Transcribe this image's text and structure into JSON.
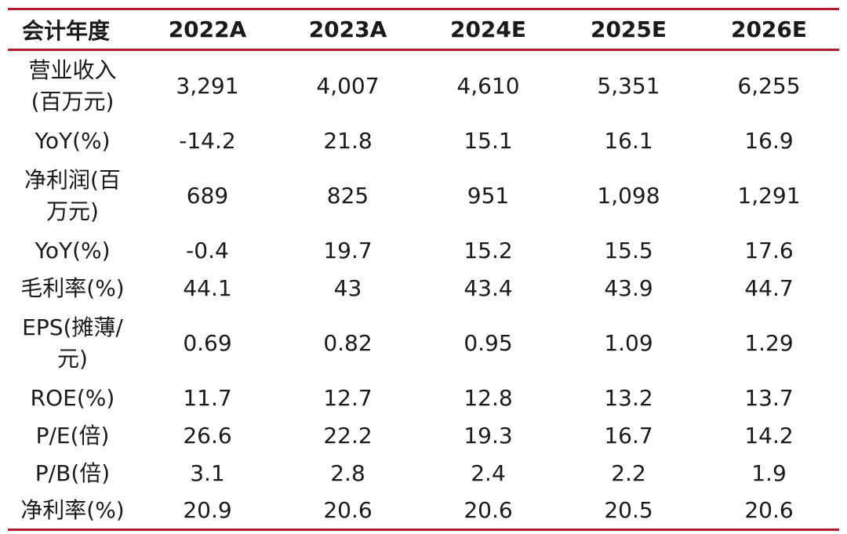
{
  "table": {
    "header": [
      "会计年度",
      "2022A",
      "2023A",
      "2024E",
      "2025E",
      "2026E"
    ],
    "rows": [
      {
        "label": "营业收入\n(百万元)",
        "values": [
          "3,291",
          "4,007",
          "4,610",
          "5,351",
          "6,255"
        ]
      },
      {
        "label": "YoY(%)",
        "values": [
          "-14.2",
          "21.8",
          "15.1",
          "16.1",
          "16.9"
        ]
      },
      {
        "label": "净利润(百\n万元)",
        "values": [
          "689",
          "825",
          "951",
          "1,098",
          "1,291"
        ]
      },
      {
        "label": "YoY(%)",
        "values": [
          "-0.4",
          "19.7",
          "15.2",
          "15.5",
          "17.6"
        ]
      },
      {
        "label": "毛利率(%)",
        "values": [
          "44.1",
          "43",
          "43.4",
          "43.9",
          "44.7"
        ]
      },
      {
        "label": "EPS(摊薄/\n元)",
        "values": [
          "0.69",
          "0.82",
          "0.95",
          "1.09",
          "1.29"
        ]
      },
      {
        "label": "ROE(%)",
        "values": [
          "11.7",
          "12.7",
          "12.8",
          "13.2",
          "13.7"
        ]
      },
      {
        "label": "P/E(倍)",
        "values": [
          "26.6",
          "22.2",
          "19.3",
          "16.7",
          "14.2"
        ]
      },
      {
        "label": "P/B(倍)",
        "values": [
          "3.1",
          "2.8",
          "2.4",
          "2.2",
          "1.9"
        ]
      },
      {
        "label": "净利率(%)",
        "values": [
          "20.9",
          "20.6",
          "20.6",
          "20.5",
          "20.6"
        ]
      }
    ]
  },
  "colors": {
    "rule": "#b01c2e",
    "text": "#1a1a1a"
  }
}
